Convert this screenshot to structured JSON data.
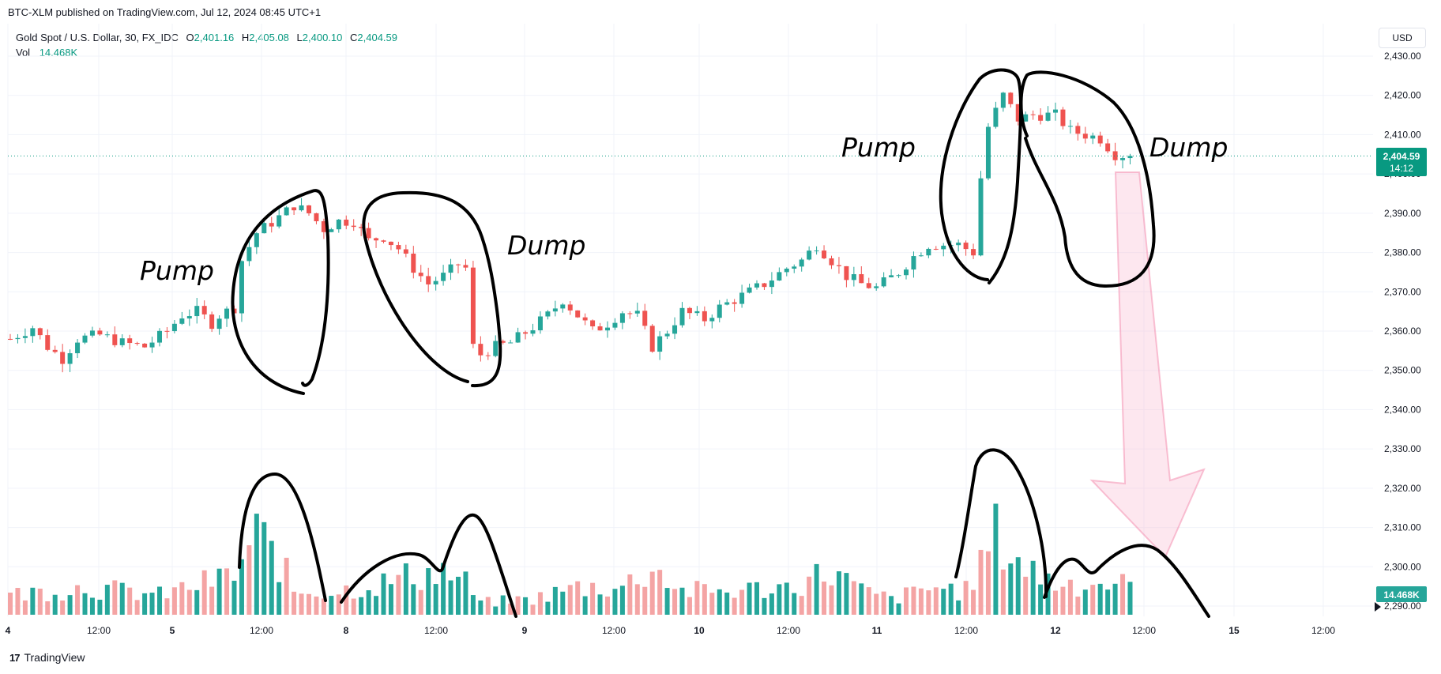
{
  "publisher_line": "BTC-XLM published on TradingView.com, Jul 12, 2024 08:45 UTC+1",
  "legend": {
    "symbol": "Gold Spot / U.S. Dollar, 30, FX_IDC",
    "o_label": "O",
    "o_value": "2,401.16",
    "h_label": "H",
    "h_value": "2,405.08",
    "l_label": "L",
    "l_value": "2,400.10",
    "c_label": "C",
    "c_value": "2,404.59",
    "vol_label": "Vol",
    "vol_value": "14.468K"
  },
  "currency_button": "USD",
  "brand": {
    "logo_glyph": "17",
    "name": "TradingView"
  },
  "price_badge": {
    "price": "2,404.59",
    "countdown": "14:12"
  },
  "volume_badge": "14.468K",
  "annotations": [
    "Pump",
    "Dump",
    "Pump",
    "Dump"
  ],
  "colors": {
    "up": "#26a69a",
    "down": "#ef5350",
    "vol_up": "#26a69a",
    "vol_down": "#f4a4a4",
    "badge": "#089981"
  },
  "chart_data": {
    "type": "candlestick",
    "title": "Gold Spot / U.S. Dollar, 30, FX_IDC",
    "ylim": [
      2290,
      2430
    ],
    "y_ticks": [
      "2,430.00",
      "2,420.00",
      "2,410.00",
      "2,400.00",
      "2,390.00",
      "2,380.00",
      "2,370.00",
      "2,360.00",
      "2,350.00",
      "2,340.00",
      "2,330.00",
      "2,320.00",
      "2,310.00",
      "2,300.00",
      "2,290.00"
    ],
    "x_ticks": [
      "4",
      "12:00",
      "5",
      "12:00",
      "8",
      "12:00",
      "9",
      "12:00",
      "10",
      "12:00",
      "11",
      "12:00",
      "12",
      "12:00",
      "15",
      "12:00"
    ],
    "last_price": 2404.59,
    "price_path": [
      [
        0,
        2358
      ],
      [
        3,
        2361
      ],
      [
        5,
        2356
      ],
      [
        7,
        2353
      ],
      [
        9,
        2358
      ],
      [
        12,
        2359
      ],
      [
        15,
        2357
      ],
      [
        18,
        2356
      ],
      [
        21,
        2360
      ],
      [
        23,
        2364
      ],
      [
        25,
        2365
      ],
      [
        27,
        2362
      ],
      [
        28,
        2364
      ],
      [
        30,
        2366
      ],
      [
        31,
        2378
      ],
      [
        33,
        2385
      ],
      [
        36,
        2389
      ],
      [
        38,
        2392
      ],
      [
        40,
        2390
      ],
      [
        42,
        2386
      ],
      [
        44,
        2388
      ],
      [
        46,
        2388
      ],
      [
        48,
        2383
      ],
      [
        50,
        2384
      ],
      [
        52,
        2381
      ],
      [
        54,
        2376
      ],
      [
        56,
        2372
      ],
      [
        58,
        2374
      ],
      [
        60,
        2377
      ],
      [
        61,
        2376
      ],
      [
        62,
        2356
      ],
      [
        63,
        2354
      ],
      [
        65,
        2356
      ],
      [
        67,
        2357
      ],
      [
        70,
        2361
      ],
      [
        72,
        2364
      ],
      [
        74,
        2368
      ],
      [
        76,
        2364
      ],
      [
        78,
        2360
      ],
      [
        80,
        2362
      ],
      [
        82,
        2365
      ],
      [
        84,
        2364
      ],
      [
        86,
        2356
      ],
      [
        88,
        2360
      ],
      [
        90,
        2365
      ],
      [
        93,
        2363
      ],
      [
        95,
        2366
      ],
      [
        98,
        2369
      ],
      [
        101,
        2372
      ],
      [
        104,
        2376
      ],
      [
        106,
        2378
      ],
      [
        108,
        2382
      ],
      [
        110,
        2378
      ],
      [
        112,
        2374
      ],
      [
        114,
        2372
      ],
      [
        116,
        2371
      ],
      [
        119,
        2375
      ],
      [
        121,
        2379
      ],
      [
        123,
        2382
      ],
      [
        125,
        2382
      ],
      [
        127,
        2382
      ],
      [
        129,
        2380
      ],
      [
        130,
        2399
      ],
      [
        131,
        2412
      ],
      [
        133,
        2420
      ],
      [
        135,
        2414
      ],
      [
        137,
        2415
      ],
      [
        140,
        2415
      ],
      [
        142,
        2411
      ],
      [
        144,
        2410
      ],
      [
        146,
        2409
      ],
      [
        148,
        2405
      ],
      [
        150,
        2404.59
      ]
    ],
    "volume_scale_max": 36,
    "volume_path": [
      [
        0,
        5
      ],
      [
        10,
        7
      ],
      [
        20,
        5
      ],
      [
        30,
        10
      ],
      [
        33,
        20
      ],
      [
        36,
        14
      ],
      [
        38,
        6
      ],
      [
        44,
        6
      ],
      [
        50,
        8
      ],
      [
        54,
        10
      ],
      [
        58,
        11
      ],
      [
        61,
        8
      ],
      [
        63,
        3
      ],
      [
        70,
        4
      ],
      [
        76,
        7
      ],
      [
        82,
        7
      ],
      [
        86,
        12
      ],
      [
        90,
        6
      ],
      [
        96,
        6
      ],
      [
        104,
        7
      ],
      [
        110,
        11
      ],
      [
        114,
        6
      ],
      [
        118,
        4
      ],
      [
        124,
        7
      ],
      [
        128,
        6
      ],
      [
        132,
        20
      ],
      [
        136,
        12
      ],
      [
        140,
        8
      ],
      [
        144,
        8
      ],
      [
        148,
        8
      ],
      [
        150,
        7
      ]
    ],
    "series": [
      {
        "values": "OHLC 30-minute candles"
      },
      {
        "name": "Vol",
        "values": "volume bars"
      }
    ]
  }
}
